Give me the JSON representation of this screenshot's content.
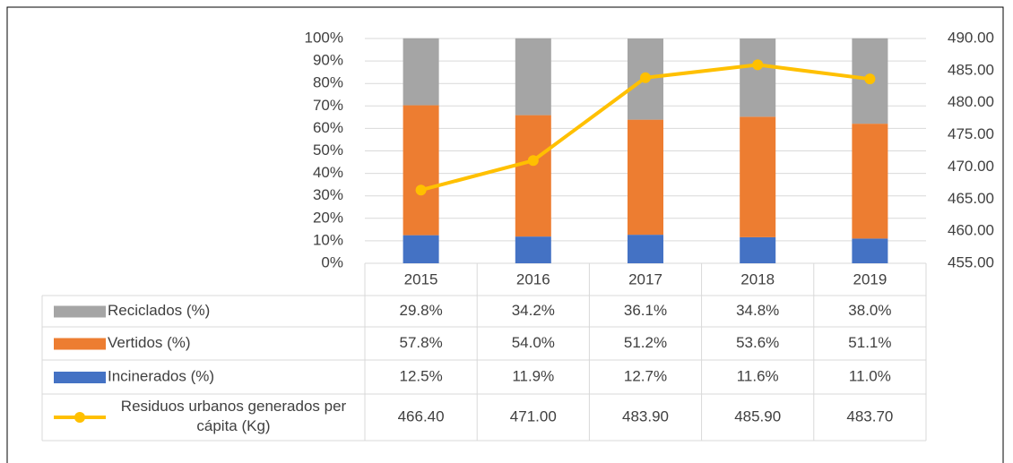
{
  "chart_data": {
    "type": "bar",
    "stacked": true,
    "categories": [
      "2015",
      "2016",
      "2017",
      "2018",
      "2019"
    ],
    "series": [
      {
        "name": "Reciclados (%)",
        "color": "#a5a5a5",
        "values": [
          29.8,
          34.2,
          36.1,
          34.8,
          38.0
        ],
        "value_labels": [
          "29.8%",
          "34.2%",
          "36.1%",
          "34.8%",
          "38.0%"
        ]
      },
      {
        "name": "Vertidos (%)",
        "color": "#ed7d31",
        "values": [
          57.8,
          54.0,
          51.2,
          53.6,
          51.1
        ],
        "value_labels": [
          "57.8%",
          "54.0%",
          "51.2%",
          "53.6%",
          "51.1%"
        ]
      },
      {
        "name": "Incinerados (%)",
        "color": "#4472c4",
        "values": [
          12.5,
          11.9,
          12.7,
          11.6,
          11.0
        ],
        "value_labels": [
          "12.5%",
          "11.9%",
          "12.7%",
          "11.6%",
          "11.0%"
        ]
      },
      {
        "name": "Residuos urbanos generados per cápita (Kg)",
        "color": "#ffc000",
        "type": "line",
        "axis": "y2",
        "values": [
          466.4,
          471.0,
          483.9,
          485.9,
          483.7
        ],
        "value_labels": [
          "466.40",
          "471.00",
          "483.90",
          "485.90",
          "483.70"
        ]
      }
    ],
    "ylim": [
      0,
      100
    ],
    "yticks": [
      {
        "value": 0,
        "label": "0%"
      },
      {
        "value": 10,
        "label": "10%"
      },
      {
        "value": 20,
        "label": "20%"
      },
      {
        "value": 30,
        "label": "30%"
      },
      {
        "value": 40,
        "label": "40%"
      },
      {
        "value": 50,
        "label": "50%"
      },
      {
        "value": 60,
        "label": "60%"
      },
      {
        "value": 70,
        "label": "70%"
      },
      {
        "value": 80,
        "label": "80%"
      },
      {
        "value": 90,
        "label": "90%"
      },
      {
        "value": 100,
        "label": "100%"
      }
    ],
    "y2lim": [
      455,
      490
    ],
    "y2ticks": [
      {
        "value": 455,
        "label": "455.00"
      },
      {
        "value": 460,
        "label": "460.00"
      },
      {
        "value": 465,
        "label": "465.00"
      },
      {
        "value": 470,
        "label": "470.00"
      },
      {
        "value": 475,
        "label": "475.00"
      },
      {
        "value": 480,
        "label": "480.00"
      },
      {
        "value": 485,
        "label": "485.00"
      },
      {
        "value": 490,
        "label": "490.00"
      }
    ],
    "grid": true
  }
}
